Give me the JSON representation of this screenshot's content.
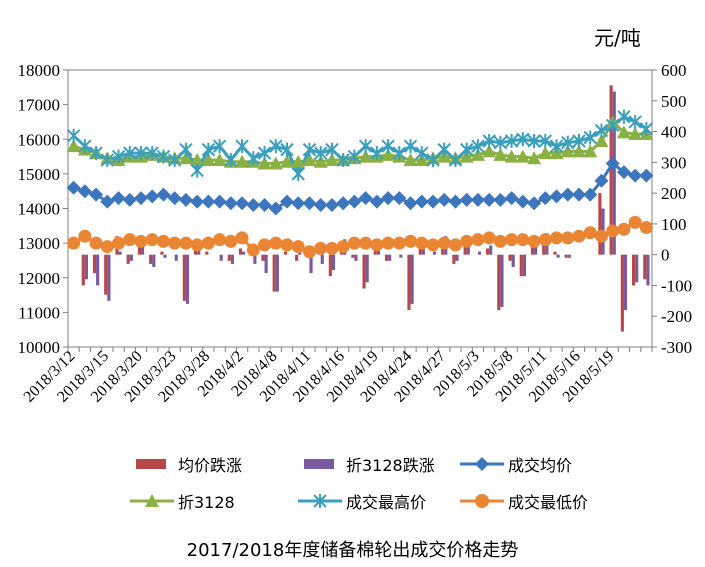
{
  "chart_data": {
    "type": "line",
    "title": "",
    "caption": "2017/2018年度储备棉轮出成交价格走势",
    "right_axis_unit": "元/吨",
    "y_left": {
      "min": 10000,
      "max": 18000,
      "ticks": [
        10000,
        11000,
        12000,
        13000,
        14000,
        15000,
        16000,
        17000,
        18000
      ]
    },
    "y_right": {
      "min": -300,
      "max": 600,
      "ticks": [
        -300,
        -200,
        -100,
        0,
        100,
        200,
        300,
        400,
        500,
        600
      ]
    },
    "x_tick_labels": [
      "2018/3/12",
      "2018/3/15",
      "2018/3/20",
      "2018/3/23",
      "2018/3/28",
      "2018/4/2",
      "2018/4/8",
      "2018/4/11",
      "2018/4/16",
      "2018/4/19",
      "2018/4/24",
      "2018/4/27",
      "2018/5/3",
      "2018/5/8",
      "2018/5/11",
      "2018/5/16",
      "2018/5/19"
    ],
    "x_tick_positions": [
      0,
      3,
      6,
      9,
      12,
      15,
      18,
      21,
      24,
      27,
      30,
      33,
      36,
      39,
      42,
      45,
      48
    ],
    "n_points": 52,
    "legend": [
      "均价跌涨",
      "折3128跌涨",
      "成交均价",
      "折3128",
      "成交最高价",
      "成交最低价"
    ],
    "colors": {
      "avg_change": "#b84848",
      "z3128_change": "#7a5a9e",
      "avg_price": "#3c76bf",
      "z3128": "#8bb043",
      "max_price": "#3a9fbd",
      "min_price": "#ea8533"
    },
    "series": [
      {
        "name": "成交均价",
        "axis": "left",
        "marker": "diamond",
        "values": [
          14600,
          14500,
          14400,
          14200,
          14300,
          14250,
          14300,
          14350,
          14400,
          14300,
          14250,
          14200,
          14200,
          14200,
          14150,
          14150,
          14100,
          14100,
          14000,
          14200,
          14150,
          14150,
          14100,
          14100,
          14150,
          14200,
          14300,
          14200,
          14300,
          14300,
          14150,
          14200,
          14200,
          14250,
          14200,
          14250,
          14250,
          14250,
          14250,
          14300,
          14200,
          14150,
          14300,
          14350,
          14400,
          14400,
          14400,
          14800,
          15300,
          15050,
          14950,
          14950
        ]
      },
      {
        "name": "折3128",
        "axis": "left",
        "marker": "triangle",
        "values": [
          15800,
          15700,
          15600,
          15450,
          15400,
          15500,
          15500,
          15550,
          15500,
          15450,
          15450,
          15400,
          15400,
          15400,
          15350,
          15350,
          15350,
          15300,
          15300,
          15350,
          15350,
          15400,
          15350,
          15400,
          15400,
          15450,
          15500,
          15500,
          15550,
          15500,
          15400,
          15400,
          15450,
          15500,
          15450,
          15500,
          15550,
          15650,
          15550,
          15500,
          15500,
          15450,
          15600,
          15600,
          15650,
          15650,
          15650,
          15950,
          16500,
          16200,
          16150,
          16150
        ]
      },
      {
        "name": "成交最高价",
        "axis": "left",
        "marker": "star",
        "values": [
          16100,
          15800,
          15600,
          15400,
          15500,
          15600,
          15600,
          15600,
          15500,
          15400,
          15700,
          15100,
          15700,
          15800,
          15400,
          15800,
          15450,
          15600,
          15800,
          15700,
          15000,
          15700,
          15600,
          15700,
          15400,
          15500,
          15800,
          15600,
          15800,
          15600,
          15800,
          15600,
          15400,
          15700,
          15400,
          15700,
          15800,
          15950,
          15900,
          15950,
          16000,
          15950,
          15950,
          15800,
          15900,
          15950,
          16050,
          16250,
          16400,
          16650,
          16500,
          16300
        ]
      },
      {
        "name": "成交最低价",
        "axis": "left",
        "marker": "circle",
        "values": [
          13000,
          13200,
          13000,
          12900,
          13000,
          13100,
          13050,
          13100,
          13050,
          13000,
          13000,
          12950,
          13000,
          13100,
          13050,
          13150,
          12800,
          12950,
          13000,
          12950,
          12900,
          12750,
          12850,
          12850,
          12900,
          13000,
          13000,
          12950,
          13000,
          13000,
          13050,
          13000,
          12950,
          13000,
          12950,
          13050,
          13100,
          13150,
          13050,
          13100,
          13100,
          13050,
          13100,
          13150,
          13150,
          13200,
          13300,
          13200,
          13350,
          13400,
          13600,
          13450
        ]
      },
      {
        "name": "均价跌涨",
        "axis": "right",
        "type": "bar",
        "values": [
          0,
          -100,
          -60,
          -130,
          60,
          -30,
          40,
          -30,
          10,
          0,
          -150,
          20,
          10,
          0,
          -20,
          20,
          0,
          -20,
          -120,
          10,
          -20,
          0,
          10,
          -70,
          40,
          -10,
          -110,
          40,
          -20,
          0,
          -180,
          20,
          0,
          50,
          -30,
          40,
          0,
          20,
          -180,
          -20,
          -70,
          30,
          40,
          10,
          -10,
          0,
          0,
          200,
          550,
          -250,
          -100,
          -80
        ]
      },
      {
        "name": "折3128跌涨",
        "axis": "right",
        "type": "bar",
        "values": [
          0,
          -80,
          -100,
          -150,
          10,
          -20,
          60,
          -40,
          -10,
          -20,
          -160,
          30,
          0,
          -20,
          -30,
          10,
          -30,
          -60,
          -120,
          0,
          10,
          -60,
          -30,
          -50,
          50,
          -20,
          -90,
          40,
          -20,
          -10,
          -160,
          20,
          10,
          60,
          -20,
          40,
          10,
          30,
          -170,
          -40,
          -70,
          30,
          70,
          -10,
          -10,
          0,
          0,
          150,
          530,
          -180,
          -90,
          -100
        ]
      }
    ]
  }
}
